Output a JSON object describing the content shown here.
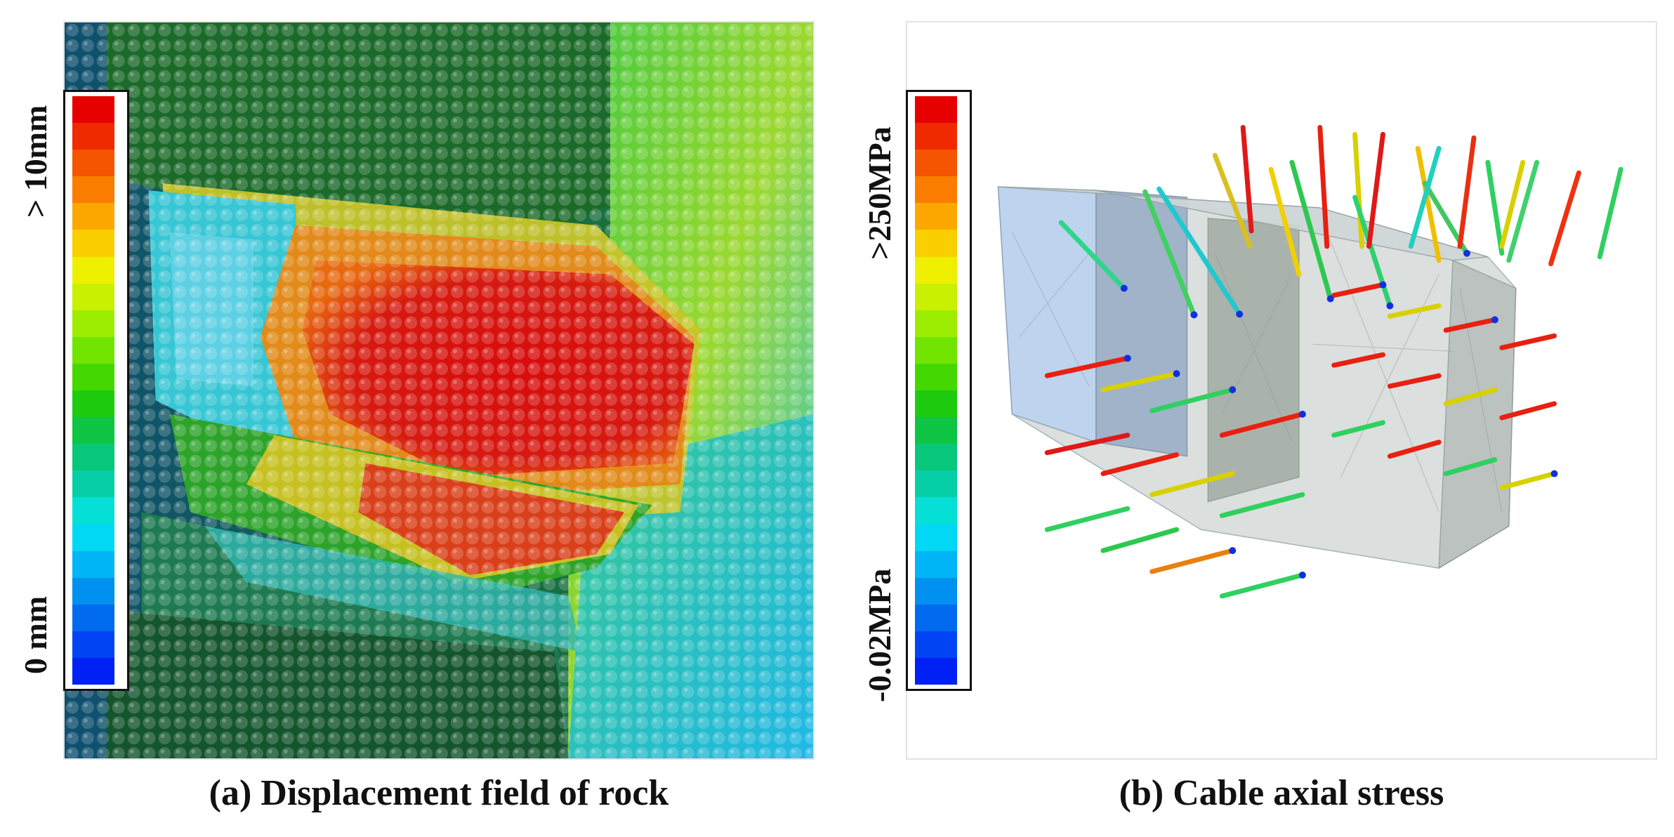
{
  "panel_a": {
    "caption": "(a) Displacement field of rock",
    "colorbar": {
      "max_label": "> 10mm",
      "min_label": "0 mm"
    }
  },
  "panel_b": {
    "caption": "(b) Cable axial stress",
    "colorbar": {
      "max_label": ">250MPa",
      "min_label": "-0.02MPa"
    }
  },
  "colorbar_colors": [
    "#e60000",
    "#f02a00",
    "#f55400",
    "#fa7d00",
    "#fca800",
    "#f9cf00",
    "#eef000",
    "#c8f000",
    "#9ded00",
    "#71e400",
    "#45d800",
    "#1fcb0f",
    "#0ec443",
    "#08c77a",
    "#06cfa8",
    "#06dfd6",
    "#00d8f4",
    "#00b5f5",
    "#0090ef",
    "#006aef",
    "#0044f4",
    "#0020f6"
  ],
  "colors": {
    "rock_dark": "#0d5a2c",
    "rock_green": "#2ea82a",
    "rock_cyan": "#33c3c8",
    "rock_red": "#d41a12",
    "rock_yellow": "#d9c21a",
    "tunnel_fill": "#c9d2d4"
  }
}
